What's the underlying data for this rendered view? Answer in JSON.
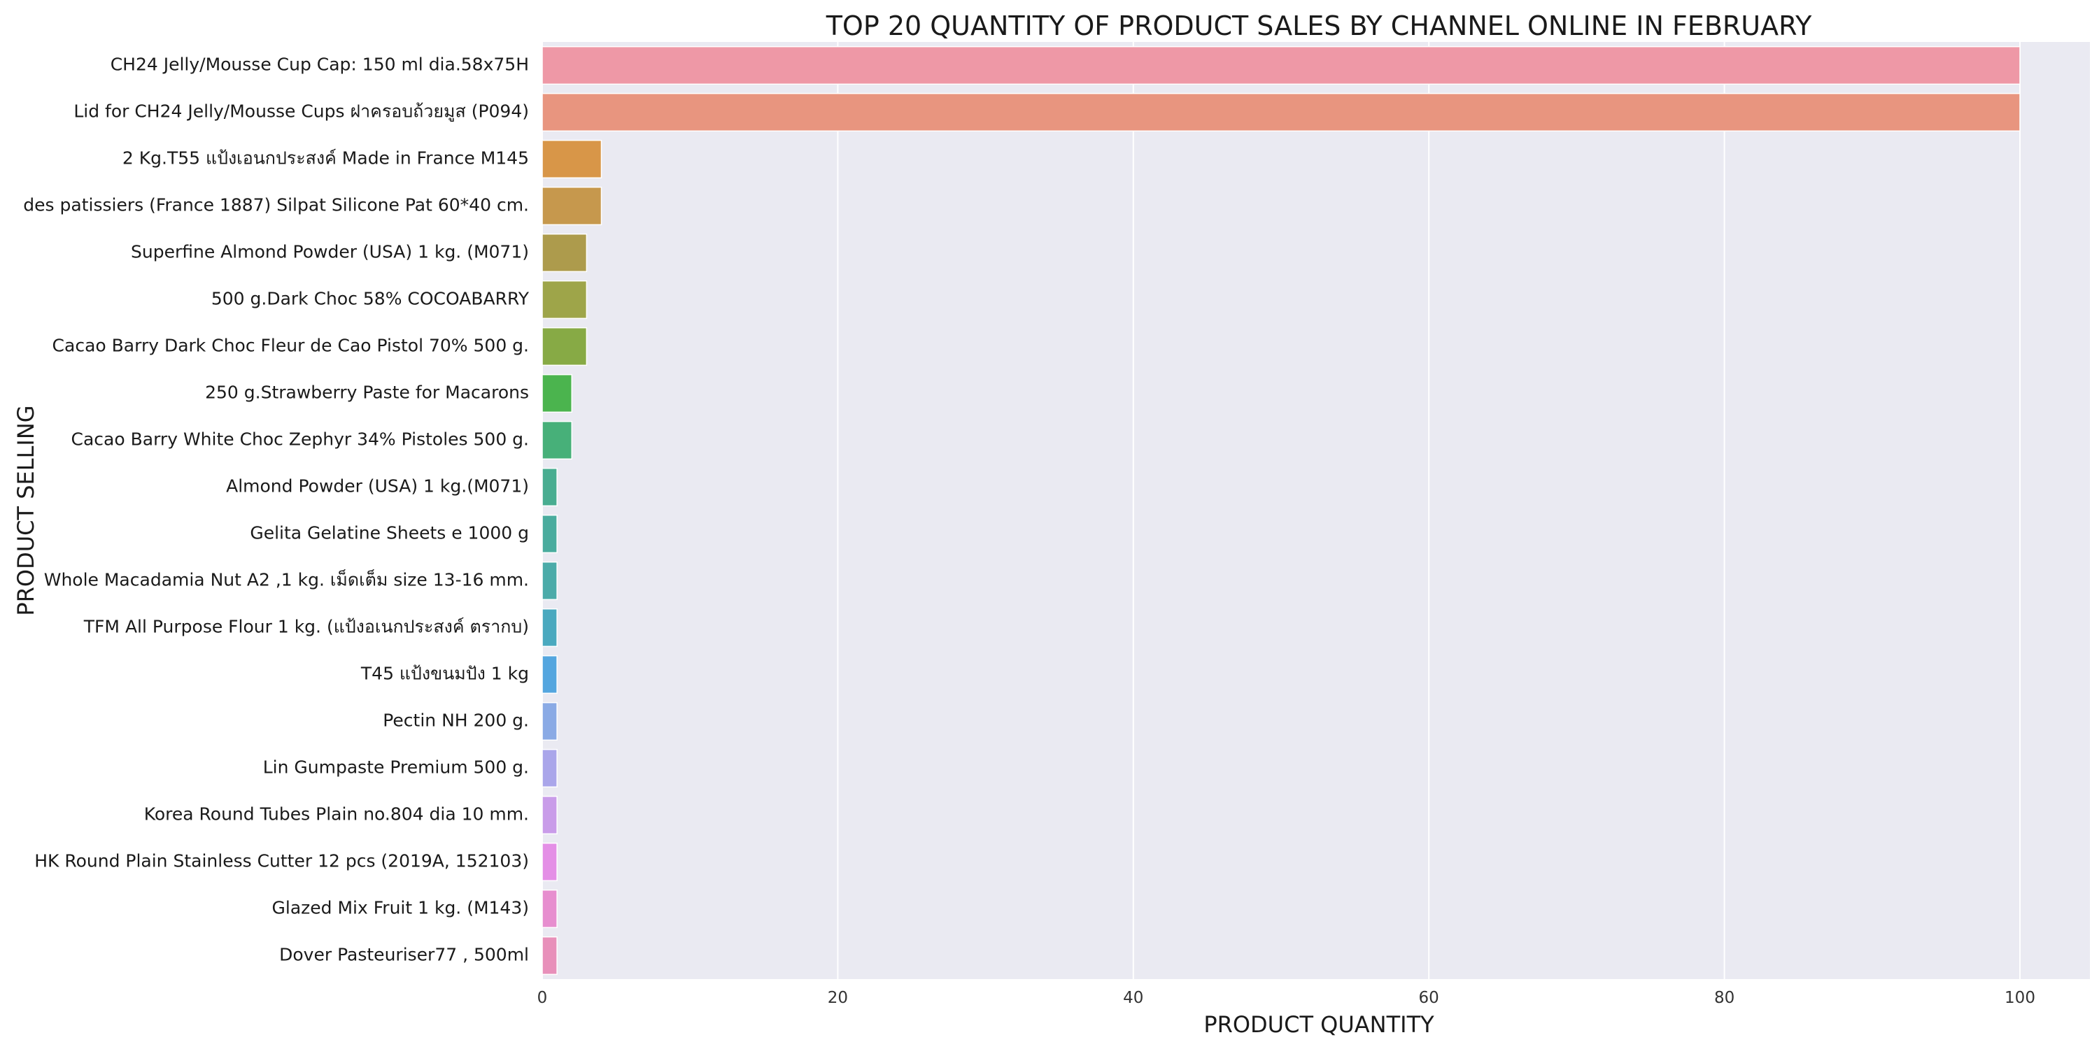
{
  "chart_data": {
    "type": "bar",
    "orientation": "horizontal",
    "title": "TOP 20 QUANTITY OF PRODUCT SALES BY CHANNEL ONLINE IN FEBRUARY",
    "xlabel": "PRODUCT QUANTITY",
    "ylabel": "PRODUCT SELLING",
    "xlim": [
      0,
      105
    ],
    "x_ticks": [
      0,
      20,
      40,
      60,
      80,
      100
    ],
    "grid": true,
    "background": "#eaeaf2",
    "grid_color": "#ffffff",
    "categories": [
      "CH24 Jelly/Mousse Cup Cap: 150 ml dia.58x75H",
      "Lid for CH24 Jelly/Mousse Cups ฝาครอบถ้วยมูส (P094)",
      "2 Kg.T55 แป้งเอนกประสงค์ Made in France M145",
      "des patissiers (France 1887) Silpat Silicone Pat 60*40 cm.",
      "Superfine Almond Powder (USA) 1 kg. (M071)",
      "500 g.Dark Choc 58% COCOABARRY",
      "Cacao Barry Dark Choc Fleur de Cao Pistol 70% 500 g.",
      "250 g.Strawberry Paste for Macarons",
      "Cacao Barry White Choc Zephyr 34% Pistoles 500 g.",
      "Almond Powder (USA) 1 kg.(M071)",
      "Gelita Gelatine Sheets e 1000 g",
      "Whole Macadamia Nut A2 ,1 kg. เม็ดเต็ม size 13-16 mm.",
      "TFM All Purpose Flour 1 kg. (แป้งอเนกประสงค์ ตรากบ)",
      "T45 แป้งขนมปัง 1 kg",
      "Pectin NH 200 g.",
      "Lin Gumpaste Premium 500 g.",
      "Korea Round Tubes Plain no.804 dia 10 mm.",
      "HK Round Plain Stainless Cutter 12 pcs (2019A, 152103)",
      "Glazed Mix Fruit 1 kg. (M143)",
      "Dover Pasteuriser77 , 500ml"
    ],
    "values": [
      100,
      100,
      4,
      4,
      3,
      3,
      3,
      2,
      2,
      1,
      1,
      1,
      1,
      1,
      1,
      1,
      1,
      1,
      1,
      1
    ],
    "colors": [
      "#ee98a6",
      "#e8957f",
      "#d89648",
      "#c6984d",
      "#ad9b4c",
      "#9ea549",
      "#87aa45",
      "#4bb44e",
      "#47b079",
      "#49ad91",
      "#4aac9e",
      "#4baba9",
      "#4aa9bf",
      "#54a6df",
      "#8aaae5",
      "#aaa6ea",
      "#c99ce9",
      "#e48fe6",
      "#e78ecf",
      "#e890ba"
    ]
  }
}
